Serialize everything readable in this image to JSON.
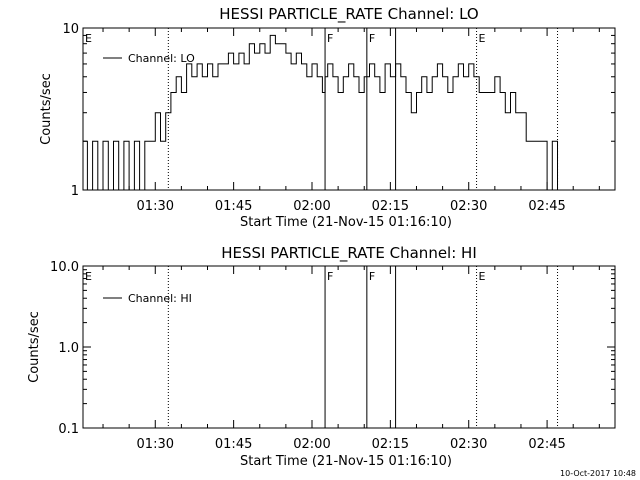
{
  "chart_data": [
    {
      "type": "line",
      "title": "HESSI PARTICLE_RATE Channel: LO",
      "xlabel": "Start Time (21-Nov-15 01:16:10)",
      "ylabel": "Counts/sec",
      "yscale": "log",
      "ylim": [
        1,
        10
      ],
      "y_tick_labels": [
        "1",
        "10"
      ],
      "x_range": [
        "01:16:10",
        "02:58:00"
      ],
      "x_tick_labels": [
        "01:30",
        "01:45",
        "02:00",
        "02:15",
        "02:30",
        "02:45"
      ],
      "legend": "Channel: LO",
      "legend_position": "top-left",
      "markers": [
        {
          "time": "01:16:10",
          "style": "dotted",
          "label": "E"
        },
        {
          "time": "01:32:30",
          "style": "dotted",
          "label": ""
        },
        {
          "time": "02:02:30",
          "style": "solid",
          "label": "F"
        },
        {
          "time": "02:10:30",
          "style": "solid",
          "label": "F"
        },
        {
          "time": "02:16:00",
          "style": "solid",
          "label": ""
        },
        {
          "time": "02:31:30",
          "style": "dotted",
          "label": "E"
        },
        {
          "time": "02:47:00",
          "style": "dotted",
          "label": ""
        }
      ],
      "series": [
        {
          "name": "Channel: LO",
          "x": [
            "01:16:10",
            "01:17:00",
            "01:18:00",
            "01:19:00",
            "01:20:00",
            "01:21:00",
            "01:22:00",
            "01:23:00",
            "01:24:00",
            "01:25:00",
            "01:26:00",
            "01:27:00",
            "01:28:00",
            "01:29:00",
            "01:30:00",
            "01:31:00",
            "01:32:00",
            "01:32:30",
            "01:33:00",
            "01:34:00",
            "01:35:00",
            "01:36:00",
            "01:37:00",
            "01:38:00",
            "01:39:00",
            "01:40:00",
            "01:41:00",
            "01:42:00",
            "01:43:00",
            "01:44:00",
            "01:45:00",
            "01:46:00",
            "01:47:00",
            "01:48:00",
            "01:49:00",
            "01:50:00",
            "01:51:00",
            "01:52:00",
            "01:53:00",
            "01:54:00",
            "01:55:00",
            "01:56:00",
            "01:57:00",
            "01:58:00",
            "01:59:00",
            "02:00:00",
            "02:01:00",
            "02:02:00",
            "02:02:30",
            "02:03:00",
            "02:04:00",
            "02:05:00",
            "02:06:00",
            "02:07:00",
            "02:08:00",
            "02:09:00",
            "02:10:00",
            "02:10:30",
            "02:11:00",
            "02:12:00",
            "02:13:00",
            "02:14:00",
            "02:15:00",
            "02:16:00",
            "02:17:00",
            "02:18:00",
            "02:19:00",
            "02:20:00",
            "02:21:00",
            "02:22:00",
            "02:23:00",
            "02:24:00",
            "02:25:00",
            "02:26:00",
            "02:27:00",
            "02:28:00",
            "02:29:00",
            "02:30:00",
            "02:31:00",
            "02:32:00",
            "02:33:00",
            "02:34:00",
            "02:35:00",
            "02:36:00",
            "02:37:00",
            "02:38:00",
            "02:39:00",
            "02:40:00",
            "02:41:00",
            "02:42:00",
            "02:43:00",
            "02:44:00",
            "02:45:00",
            "02:46:00",
            "02:47:00"
          ],
          "y": [
            2,
            1,
            2,
            1,
            2,
            1,
            2,
            1,
            2,
            1,
            2,
            1,
            2,
            2,
            3,
            2,
            3,
            3,
            4,
            5,
            4,
            6,
            5,
            6,
            5,
            6,
            5,
            6,
            6,
            7,
            6,
            7,
            6,
            8,
            7,
            8,
            7,
            9,
            8,
            8,
            7,
            6,
            7,
            6,
            5,
            6,
            5,
            4,
            5,
            6,
            5,
            4,
            5,
            6,
            5,
            4,
            5,
            5,
            6,
            5,
            4,
            6,
            5,
            6,
            5,
            4,
            3,
            4,
            5,
            4,
            5,
            6,
            5,
            4,
            5,
            6,
            5,
            6,
            5,
            4,
            4,
            4,
            5,
            4,
            3,
            4,
            3,
            3,
            2,
            2,
            2,
            2,
            1,
            2,
            1
          ]
        }
      ]
    },
    {
      "type": "line",
      "title": "HESSI PARTICLE_RATE Channel: HI",
      "xlabel": "Start Time (21-Nov-15 01:16:10)",
      "ylabel": "Counts/sec",
      "yscale": "log",
      "ylim": [
        0.1,
        10
      ],
      "y_tick_labels": [
        "0.1",
        "1.0",
        "10.0"
      ],
      "x_range": [
        "01:16:10",
        "02:58:00"
      ],
      "x_tick_labels": [
        "01:30",
        "01:45",
        "02:00",
        "02:15",
        "02:30",
        "02:45"
      ],
      "legend": "Channel: HI",
      "legend_position": "top-left",
      "markers": [
        {
          "time": "01:16:10",
          "style": "dotted",
          "label": "E"
        },
        {
          "time": "01:32:30",
          "style": "dotted",
          "label": ""
        },
        {
          "time": "02:02:30",
          "style": "solid",
          "label": "F"
        },
        {
          "time": "02:10:30",
          "style": "solid",
          "label": "F"
        },
        {
          "time": "02:16:00",
          "style": "solid",
          "label": ""
        },
        {
          "time": "02:31:30",
          "style": "dotted",
          "label": "E"
        },
        {
          "time": "02:47:00",
          "style": "dotted",
          "label": ""
        }
      ],
      "series": [
        {
          "name": "Channel: HI",
          "x": [],
          "y": []
        }
      ]
    }
  ],
  "footer_timestamp": "10-Oct-2017 10:48"
}
